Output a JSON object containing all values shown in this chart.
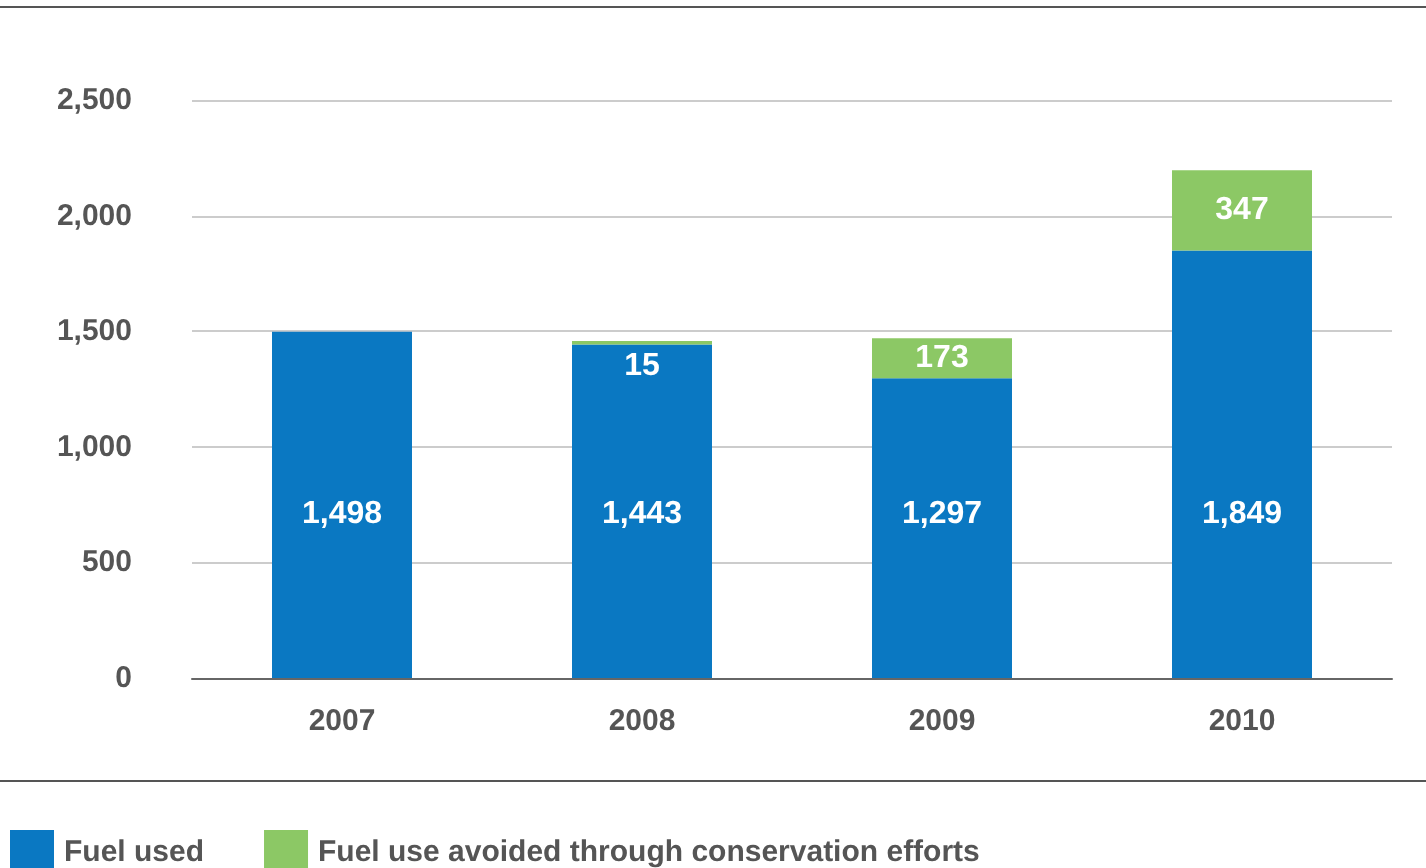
{
  "chart_data": {
    "type": "bar",
    "stacked": true,
    "categories": [
      "2007",
      "2008",
      "2009",
      "2010"
    ],
    "series": [
      {
        "name": "Fuel used",
        "color": "#0a78c2",
        "values": [
          1498,
          1443,
          1297,
          1849
        ],
        "value_labels": [
          "1,498",
          "1,443",
          "1,297",
          "1,849"
        ]
      },
      {
        "name": "Fuel use avoided through conservation efforts",
        "color": "#8cc865",
        "values": [
          null,
          15,
          173,
          347
        ],
        "value_labels": [
          null,
          "15",
          "173",
          "347"
        ]
      }
    ],
    "ylim": [
      0,
      2500
    ],
    "yticks": [
      {
        "value": 0,
        "label": "0"
      },
      {
        "value": 500,
        "label": "500"
      },
      {
        "value": 1000,
        "label": "1,000"
      },
      {
        "value": 1500,
        "label": "1,500"
      },
      {
        "value": 2000,
        "label": "2,000"
      },
      {
        "value": 2500,
        "label": "2,500"
      }
    ],
    "grid": "y",
    "legend": "bottom left"
  }
}
